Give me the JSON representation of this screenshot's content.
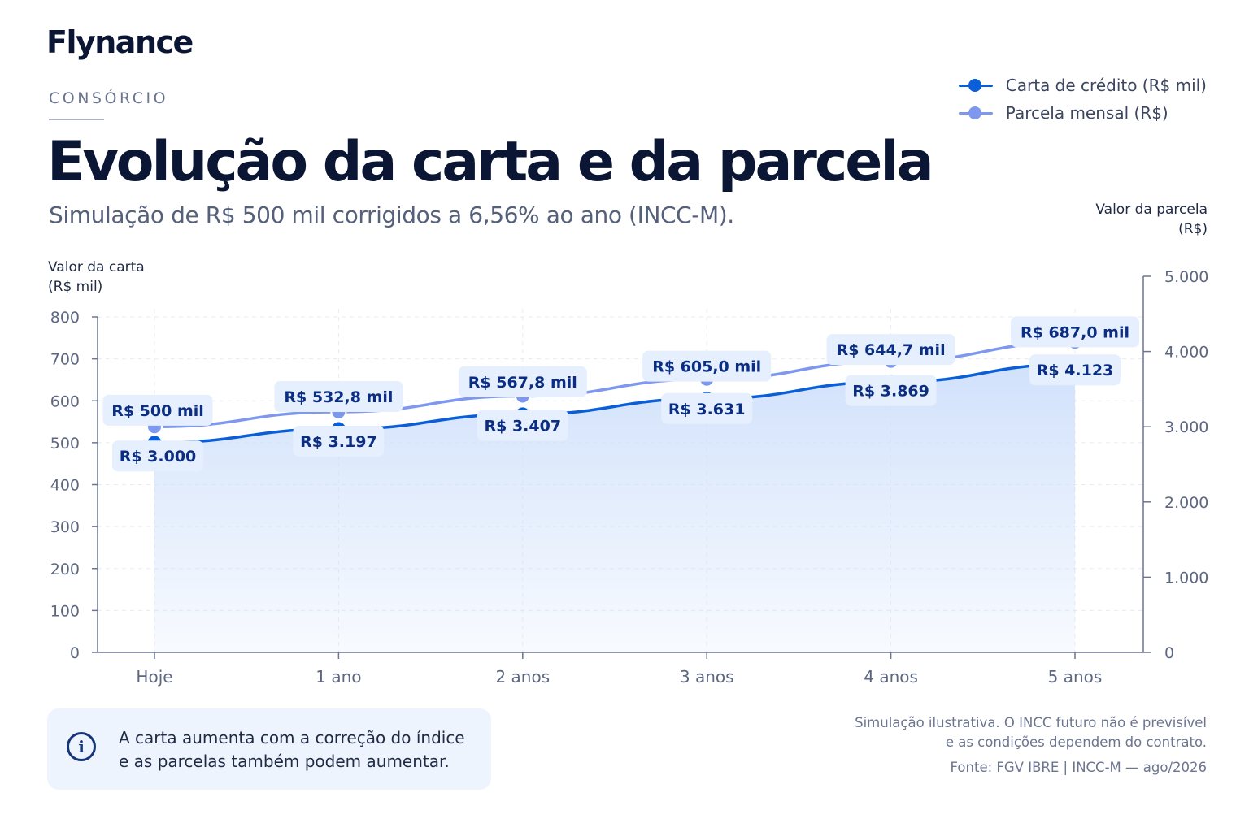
{
  "brand": "Flynance",
  "eyebrow": "CONSÓRCIO",
  "title": "Evolução da carta e da parcela",
  "subtitle": "Simulação de R$ 500 mil corrigidos a 6,56% ao ano (INCC-M).",
  "legend": [
    {
      "label": "Carta de crédito (R$ mil)",
      "color": "#0a5ed7"
    },
    {
      "label": "Parcela mensal (R$)",
      "color": "#7d98ee"
    }
  ],
  "info": {
    "icon": "info-icon",
    "text_line1": "A carta aumenta com a correção do índice",
    "text_line2": "e as parcelas também podem aumentar."
  },
  "footnote": {
    "line1": "Simulação ilustrativa. O INCC futuro não é previsível",
    "line2": "e as condições dependem do contrato."
  },
  "source": "Fonte: FGV IBRE | INCC-M — ago/2026",
  "colors": {
    "carta": "#0a5ed7",
    "parcela": "#7d98ee",
    "label_bg": "#e5effd",
    "label_text": "#0b2e82",
    "axis": "#6b7590",
    "area": "#cfe0fb"
  },
  "chart_data": {
    "type": "line",
    "categories": [
      "Hoje",
      "1 ano",
      "2 anos",
      "3 anos",
      "4 anos",
      "5 anos"
    ],
    "y_left": {
      "label_line1": "Valor da carta",
      "label_line2": "(R$ mil)",
      "range": [
        0,
        800
      ],
      "ticks": [
        0,
        100,
        200,
        300,
        400,
        500,
        600,
        700,
        800
      ]
    },
    "y_right": {
      "label_line1": "Valor da parcela",
      "label_line2": "(R$)",
      "range": [
        0,
        5000
      ],
      "ticks": [
        0,
        1000,
        2000,
        3000,
        4000,
        5000
      ],
      "tick_labels": [
        "0",
        "1.000",
        "2.000",
        "3.000",
        "4.000",
        "5.000"
      ]
    },
    "grid": true,
    "series": [
      {
        "name": "Carta de crédito (R$ mil)",
        "axis": "left",
        "values": [
          500,
          532.8,
          567.8,
          605.0,
          644.7,
          687.0
        ],
        "labels": [
          "R$ 500 mil",
          "R$ 532,8 mil",
          "R$ 567,8 mil",
          "R$ 605,0 mil",
          "R$ 644,7 mil",
          "R$ 687,0 mil"
        ]
      },
      {
        "name": "Parcela mensal (R$)",
        "axis": "right",
        "values": [
          3000,
          3197,
          3407,
          3631,
          3869,
          4123
        ],
        "labels": [
          "R$ 3.000",
          "R$ 3.197",
          "R$ 3.407",
          "R$ 3.631",
          "R$ 3.869",
          "R$ 4.123"
        ]
      }
    ]
  }
}
